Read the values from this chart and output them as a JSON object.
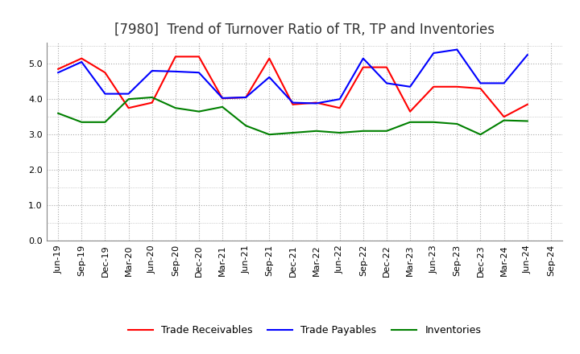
{
  "title": "[7980]  Trend of Turnover Ratio of TR, TP and Inventories",
  "ylim": [
    0.0,
    5.6
  ],
  "yticks": [
    0.0,
    1.0,
    2.0,
    3.0,
    4.0,
    5.0
  ],
  "x_labels": [
    "Jun-19",
    "Sep-19",
    "Dec-19",
    "Mar-20",
    "Jun-20",
    "Sep-20",
    "Dec-20",
    "Mar-21",
    "Jun-21",
    "Sep-21",
    "Dec-21",
    "Mar-22",
    "Jun-22",
    "Sep-22",
    "Dec-22",
    "Mar-23",
    "Jun-23",
    "Sep-23",
    "Dec-23",
    "Mar-24",
    "Jun-24",
    "Sep-24"
  ],
  "trade_receivables": [
    4.85,
    5.15,
    4.75,
    3.75,
    3.9,
    5.2,
    5.2,
    4.02,
    4.05,
    5.15,
    3.85,
    3.9,
    3.75,
    4.9,
    4.9,
    3.65,
    4.35,
    4.35,
    4.3,
    3.5,
    3.85,
    null
  ],
  "trade_payables": [
    4.75,
    5.05,
    4.15,
    4.15,
    4.8,
    4.78,
    4.75,
    4.03,
    4.05,
    4.62,
    3.9,
    3.88,
    4.0,
    5.15,
    4.45,
    4.35,
    5.3,
    5.4,
    4.45,
    4.45,
    5.25,
    null
  ],
  "inventories": [
    3.6,
    3.35,
    3.35,
    4.0,
    4.05,
    3.75,
    3.65,
    3.78,
    3.25,
    3.0,
    3.05,
    3.1,
    3.05,
    3.1,
    3.1,
    3.35,
    3.35,
    3.3,
    3.0,
    3.4,
    3.38,
    null
  ],
  "tr_color": "#FF0000",
  "tp_color": "#0000FF",
  "inv_color": "#008000",
  "tr_label": "Trade Receivables",
  "tp_label": "Trade Payables",
  "inv_label": "Inventories",
  "grid_color": "#aaaaaa",
  "bg_color": "#ffffff",
  "title_fontsize": 12,
  "legend_fontsize": 9,
  "tick_fontsize": 8,
  "title_color": "#333333"
}
